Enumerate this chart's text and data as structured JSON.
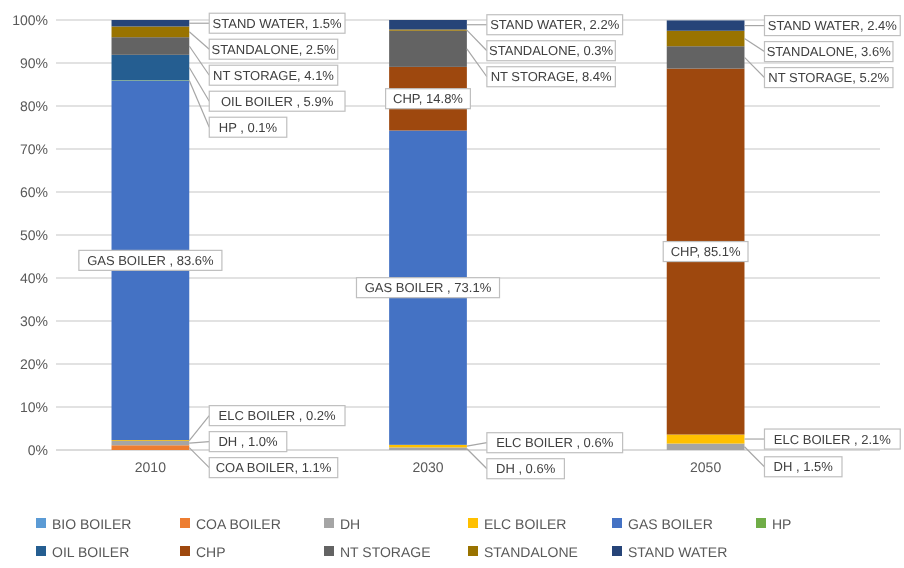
{
  "chart_data": {
    "type": "bar",
    "stacked": true,
    "categories": [
      "2010",
      "2030",
      "2050"
    ],
    "ylim": [
      0,
      100
    ],
    "yticks": [
      {
        "value": 0,
        "label": "0%"
      },
      {
        "value": 10,
        "label": "10%"
      },
      {
        "value": 20,
        "label": "20%"
      },
      {
        "value": 30,
        "label": "30%"
      },
      {
        "value": 40,
        "label": "40%"
      },
      {
        "value": 50,
        "label": "50%"
      },
      {
        "value": 60,
        "label": "60%"
      },
      {
        "value": 70,
        "label": "70%"
      },
      {
        "value": 80,
        "label": "80%"
      },
      {
        "value": 90,
        "label": "90%"
      },
      {
        "value": 100,
        "label": "100%"
      }
    ],
    "grid": "y",
    "legend": "bottom",
    "series": [
      {
        "name": "BIO BOILER",
        "color": "#5b9bd5",
        "values": [
          0,
          0,
          0
        ],
        "value_labels": [
          null,
          null,
          null
        ]
      },
      {
        "name": "COA BOILER",
        "color": "#ed7d31",
        "values": [
          1.1,
          0,
          0
        ],
        "value_labels": [
          "COA BOILER, 1.1%",
          null,
          null
        ]
      },
      {
        "name": "DH",
        "color": "#a5a5a5",
        "values": [
          1.0,
          0.6,
          1.5
        ],
        "value_labels": [
          "DH , 1.0%",
          "DH , 0.6%",
          "DH , 1.5%"
        ]
      },
      {
        "name": "ELC BOILER",
        "color": "#ffc000",
        "values": [
          0.2,
          0.6,
          2.1
        ],
        "value_labels": [
          "ELC BOILER , 0.2%",
          "ELC BOILER , 0.6%",
          "ELC BOILER , 2.1%"
        ]
      },
      {
        "name": "GAS BOILER",
        "color": "#4472c4",
        "values": [
          83.6,
          73.1,
          0
        ],
        "value_labels": [
          "GAS BOILER , 83.6%",
          "GAS BOILER , 73.1%",
          null
        ]
      },
      {
        "name": "HP",
        "color": "#70ad47",
        "values": [
          0.1,
          0,
          0
        ],
        "value_labels": [
          "HP , 0.1%",
          null,
          null
        ]
      },
      {
        "name": "OIL BOILER",
        "color": "#255e91",
        "values": [
          5.9,
          0,
          0
        ],
        "value_labels": [
          "OIL BOILER , 5.9%",
          null,
          null
        ]
      },
      {
        "name": "CHP",
        "color": "#9e480e",
        "values": [
          0,
          14.8,
          85.1
        ],
        "value_labels": [
          null,
          "CHP, 14.8%",
          "CHP, 85.1%"
        ]
      },
      {
        "name": "NT STORAGE",
        "color": "#636363",
        "values": [
          4.1,
          8.4,
          5.2
        ],
        "value_labels": [
          "NT STORAGE, 4.1%",
          "NT STORAGE, 8.4%",
          "NT STORAGE, 5.2%"
        ]
      },
      {
        "name": "STANDALONE",
        "color": "#997300",
        "values": [
          2.5,
          0.3,
          3.6
        ],
        "value_labels": [
          "STANDALONE, 2.5%",
          "STANDALONE, 0.3%",
          "STANDALONE, 3.6%"
        ]
      },
      {
        "name": "STAND WATER",
        "color": "#264478",
        "values": [
          1.5,
          2.2,
          2.4
        ],
        "value_labels": [
          "STAND WATER, 1.5%",
          "STAND WATER, 2.2%",
          "STAND WATER, 2.4%"
        ]
      }
    ]
  }
}
